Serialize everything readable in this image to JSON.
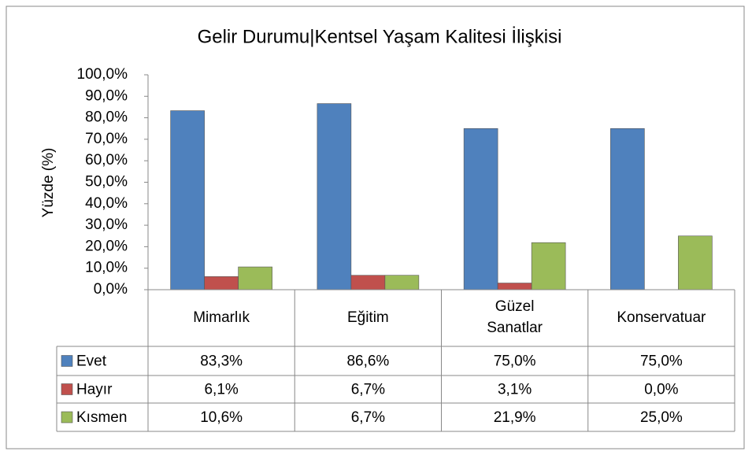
{
  "chart_data": {
    "type": "bar",
    "title": "Gelir Durumu|Kentsel Yaşam Kalitesi İlişkisi",
    "y_label": "Yüzde (%)",
    "categories": [
      "Mimarlık",
      "Eğitim",
      "Güzel Sanatlar",
      "Konservatuar"
    ],
    "series": [
      {
        "name": "Evet",
        "color": "#4f81bd",
        "values": [
          83.3,
          86.6,
          75.0,
          75.0
        ],
        "value_labels": [
          "83,3%",
          "86,6%",
          "75,0%",
          "75,0%"
        ]
      },
      {
        "name": "Hayır",
        "color": "#c0504d",
        "values": [
          6.1,
          6.7,
          3.1,
          0.0
        ],
        "value_labels": [
          "6,1%",
          "6,7%",
          "3,1%",
          "0,0%"
        ]
      },
      {
        "name": "Kısmen",
        "color": "#9bbb59",
        "values": [
          10.6,
          6.7,
          21.9,
          25.0
        ],
        "value_labels": [
          "10,6%",
          "6,7%",
          "21,9%",
          "25,0%"
        ]
      }
    ],
    "ylim": [
      0,
      100
    ],
    "yticks": [
      {
        "value": 0,
        "label": "0,0%"
      },
      {
        "value": 10,
        "label": "10,0%"
      },
      {
        "value": 20,
        "label": "20,0%"
      },
      {
        "value": 30,
        "label": "30,0%"
      },
      {
        "value": 40,
        "label": "40,0%"
      },
      {
        "value": 50,
        "label": "50,0%"
      },
      {
        "value": 60,
        "label": "60,0%"
      },
      {
        "value": 70,
        "label": "70,0%"
      },
      {
        "value": 80,
        "label": "80,0%"
      },
      {
        "value": 90,
        "label": "90,0%"
      },
      {
        "value": 100,
        "label": "100,0%"
      }
    ],
    "data_table": true
  }
}
